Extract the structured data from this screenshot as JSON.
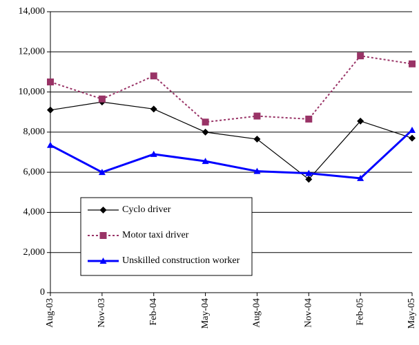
{
  "chart_data": {
    "type": "line",
    "categories": [
      "Aug-03",
      "Nov-03",
      "Feb-04",
      "May-04",
      "Aug-04",
      "Nov-04",
      "Feb-05",
      "May-05"
    ],
    "series": [
      {
        "name": "Cyclo driver",
        "color": "#000000",
        "marker": "diamond",
        "dash": "solid",
        "width": 1.2,
        "values": [
          9100,
          9500,
          9150,
          8000,
          7650,
          5650,
          8550,
          7700
        ]
      },
      {
        "name": "Motor taxi driver",
        "color": "#993366",
        "marker": "square",
        "dash": "dotted",
        "width": 2,
        "values": [
          10500,
          9650,
          10800,
          8500,
          8800,
          8650,
          11800,
          11400
        ]
      },
      {
        "name": "Unskilled construction worker",
        "color": "#0000ff",
        "marker": "triangle",
        "dash": "solid",
        "width": 3,
        "values": [
          7350,
          6000,
          6900,
          6550,
          6050,
          5950,
          5700,
          8100
        ]
      }
    ],
    "ylim": [
      0,
      14000
    ],
    "yticks": [
      0,
      {
        "value": 2000,
        "label": "2,000"
      },
      {
        "value": 4000,
        "label": "4,000"
      },
      {
        "value": 6000,
        "label": "6,000"
      },
      {
        "value": 8000,
        "label": "8,000"
      },
      {
        "value": 10000,
        "label": "10,000"
      },
      {
        "value": 12000,
        "label": "12,000"
      },
      {
        "value": 14000,
        "label": "14,000"
      }
    ],
    "grid": true
  }
}
